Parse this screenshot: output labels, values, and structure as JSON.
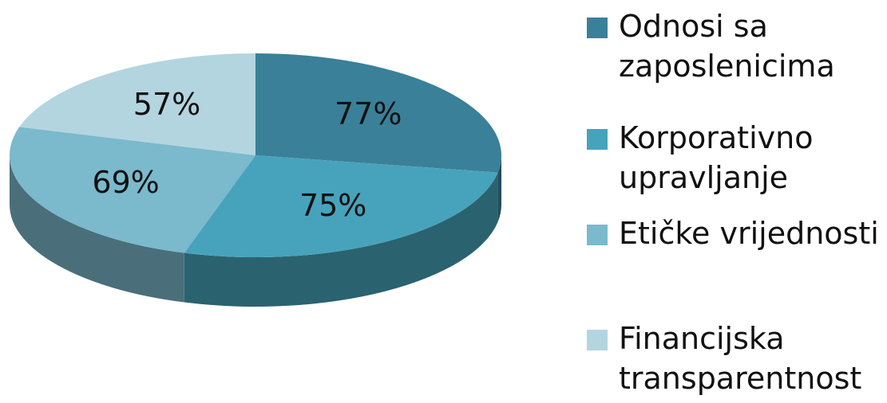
{
  "chart_data": {
    "type": "pie",
    "categories": [
      "Odnosi sa zaposlenicima",
      "Korporativno upravljanje",
      "Etičke vrijednosti",
      "Financijska transparentnost"
    ],
    "values": [
      77,
      75,
      69,
      57
    ],
    "value_labels": [
      "77%",
      "75%",
      "69%",
      "57%"
    ],
    "colors": [
      "#3a8099",
      "#47a3bb",
      "#7bb9cd",
      "#b3d5e0"
    ],
    "legend": "right"
  }
}
